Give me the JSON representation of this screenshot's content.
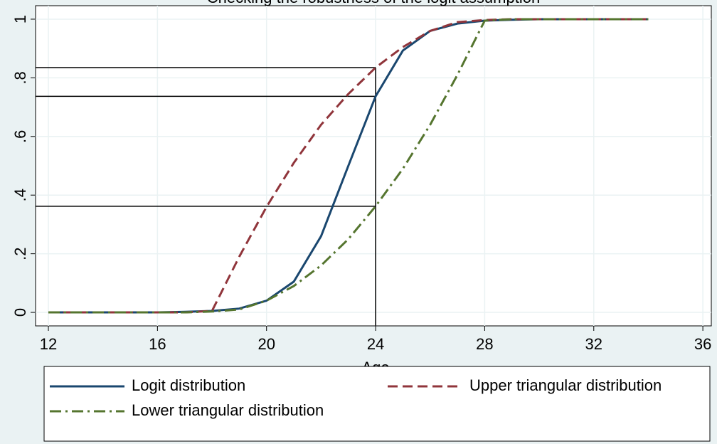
{
  "chart_data": {
    "type": "line",
    "title": "Checking the robustness of the logit assumption",
    "x_label": "Age",
    "x": [
      12,
      13,
      14,
      15,
      16,
      17,
      18,
      19,
      20,
      21,
      22,
      23,
      24,
      25,
      26,
      27,
      28,
      29,
      30,
      31,
      32,
      33,
      34
    ],
    "series": [
      {
        "name": "Logit distribution",
        "color": "#1a476f",
        "dash": "solid",
        "values": [
          0,
          0,
          0,
          0,
          0,
          0.002,
          0.005,
          0.013,
          0.04,
          0.105,
          0.26,
          0.5,
          0.737,
          0.893,
          0.96,
          0.985,
          0.995,
          0.998,
          1,
          1,
          1,
          1,
          1
        ]
      },
      {
        "name": "Upper triangular distribution",
        "color": "#90353b",
        "dash": "dashed",
        "values": [
          0,
          0,
          0,
          0,
          0,
          0,
          0.005,
          0.19,
          0.36,
          0.51,
          0.64,
          0.745,
          0.835,
          0.905,
          0.96,
          0.99,
          0.997,
          1,
          1,
          1,
          1,
          1,
          1
        ]
      },
      {
        "name": "Lower triangular distribution",
        "color": "#55752f",
        "dash": "dashdot",
        "values": [
          0,
          0,
          0,
          0,
          0,
          0,
          0.003,
          0.01,
          0.04,
          0.09,
          0.16,
          0.25,
          0.362,
          0.49,
          0.64,
          0.81,
          0.995,
          1,
          1,
          1,
          1,
          1,
          1
        ]
      }
    ],
    "reference_lines": {
      "x": 24,
      "y": [
        0.835,
        0.737,
        0.362
      ]
    },
    "xlim": [
      11.53,
      36.31
    ],
    "xticks": [
      12,
      16,
      20,
      24,
      28,
      32,
      36
    ],
    "ylim": [
      -0.046,
      1.046
    ],
    "yticks": [
      0,
      {
        "value": 0.2,
        "label": ".2"
      },
      {
        "value": 0.4,
        "label": ".4"
      },
      {
        "value": 0.6,
        "label": ".6"
      },
      {
        "value": 0.8,
        "label": ".8"
      },
      1
    ],
    "grid": true,
    "legend": "bottom"
  }
}
